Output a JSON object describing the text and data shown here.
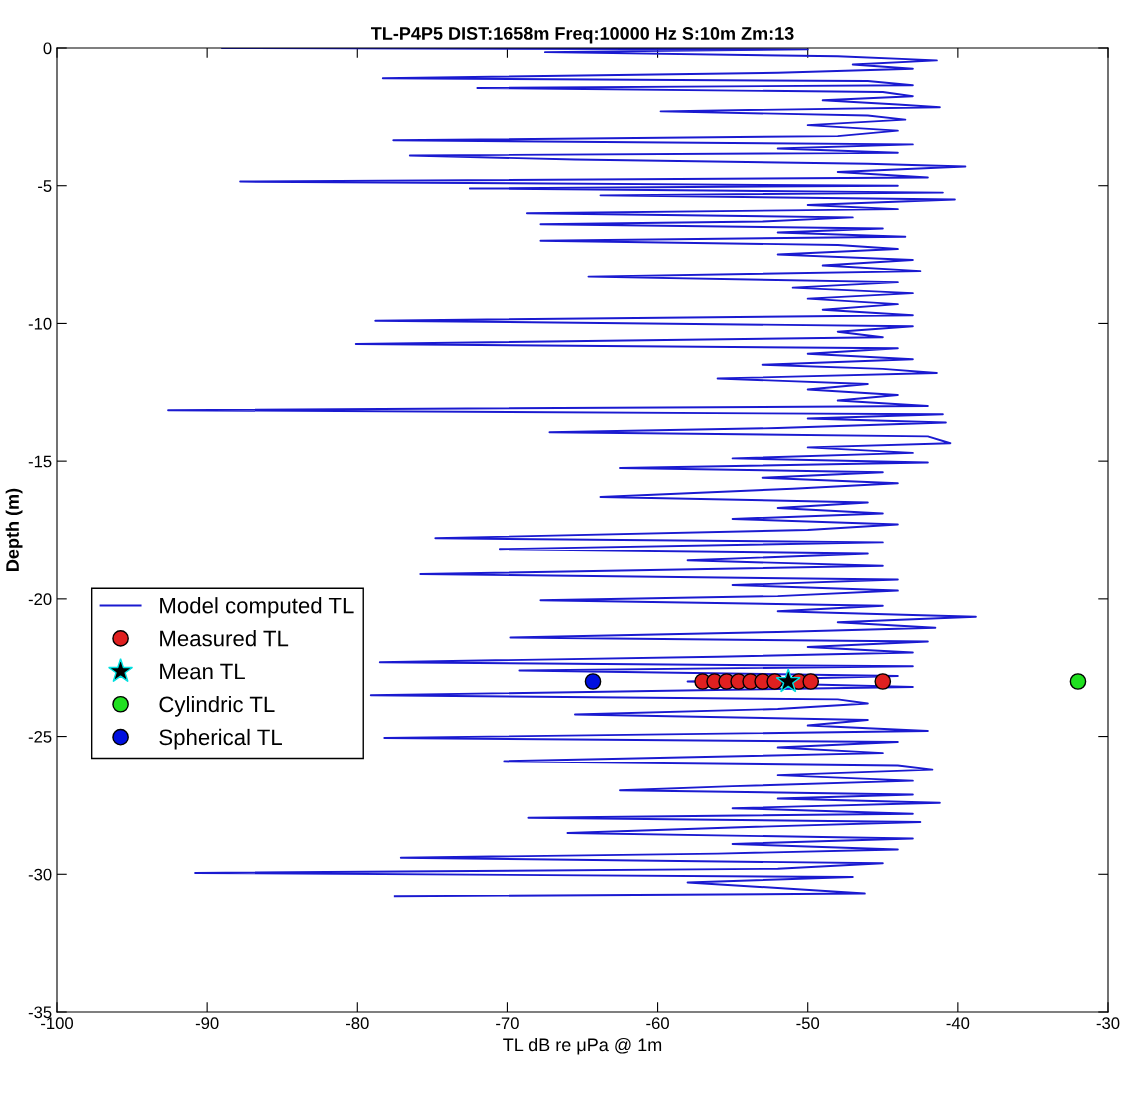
{
  "chart_data": {
    "type": "line",
    "title": "TL-P4P5 DIST:1658m Freq:10000 Hz S:10m Zm:13",
    "xlabel": "TL dB re μPa @ 1m",
    "ylabel": "Depth (m)",
    "xlim": [
      -100,
      -30
    ],
    "xticks": [
      -100,
      -90,
      -80,
      -70,
      -60,
      -50,
      -40,
      -30
    ],
    "ylim": [
      -35,
      0
    ],
    "yticks": [
      -35,
      -30,
      -25,
      -20,
      -15,
      -10,
      -5,
      0
    ],
    "grid": false,
    "legend": "left",
    "series": [
      {
        "name": "Model computed TL",
        "color": "#1a1ad0",
        "marker": "none",
        "line_style": "solid",
        "x": [
          -89,
          -50,
          -67.5,
          -48,
          -41.4,
          -47,
          -43,
          -52,
          -78.3,
          -46,
          -43,
          -72,
          -45,
          -43,
          -49,
          -44,
          -41.2,
          -59.8,
          -46,
          -43.5,
          -50,
          -44,
          -48,
          -77.6,
          -43,
          -52,
          -44,
          -76.5,
          -65.5,
          -46,
          -39.5,
          -48,
          -42,
          -87.8,
          -44,
          -72.5,
          -41,
          -63.8,
          -40.2,
          -50,
          -44,
          -68.7,
          -47,
          -53,
          -67.8,
          -45,
          -52,
          -43.5,
          -67.8,
          -48,
          -44,
          -52,
          -43,
          -49,
          -42.5,
          -64.6,
          -44,
          -51,
          -43,
          -50,
          -44,
          -49,
          -43,
          -78.8,
          -43,
          -48,
          -45,
          -80.1,
          -44,
          -50,
          -43,
          -53,
          -45,
          -41.4,
          -56,
          -46,
          -50,
          -44,
          -48,
          -42,
          -92.6,
          -41,
          -50,
          -40.8,
          -52,
          -67.2,
          -42,
          -40.5,
          -50,
          -43,
          -55,
          -42,
          -62.5,
          -45,
          -53,
          -44,
          -51,
          -63.8,
          -46,
          -52,
          -45,
          -55,
          -44,
          -50,
          -74.8,
          -45,
          -70.5,
          -46,
          -58,
          -45,
          -75.8,
          -44,
          -55,
          -44,
          -52,
          -67.8,
          -45,
          -52,
          -38.8,
          -48,
          -41.5,
          -52,
          -69.8,
          -42,
          -50,
          -43,
          -56,
          -78.5,
          -43,
          -69.2,
          -44,
          -58,
          -43,
          -79.1,
          -48,
          -46,
          -52,
          -65.5,
          -46,
          -50,
          -42,
          -78.2,
          -44,
          -52,
          -45,
          -70.2,
          -44,
          -41.7,
          -52,
          -43,
          -55,
          -62.5,
          -43,
          -52,
          -41.2,
          -55,
          -43,
          -68.6,
          -42.5,
          -55,
          -66,
          -43,
          -55,
          -44,
          -56,
          -77.1,
          -45,
          -52,
          -90.8,
          -47,
          -58,
          -52,
          -46.2,
          -77.5
        ],
        "values": [
          0,
          -0.05,
          -0.15,
          -0.3,
          -0.45,
          -0.6,
          -0.75,
          -0.9,
          -1.1,
          -1.2,
          -1.35,
          -1.45,
          -1.6,
          -1.75,
          -1.9,
          -2.05,
          -2.15,
          -2.3,
          -2.45,
          -2.6,
          -2.8,
          -3.0,
          -3.2,
          -3.35,
          -3.5,
          -3.65,
          -3.8,
          -3.9,
          -4.05,
          -4.2,
          -4.3,
          -4.5,
          -4.7,
          -4.85,
          -5.0,
          -5.1,
          -5.25,
          -5.35,
          -5.5,
          -5.7,
          -5.85,
          -6.0,
          -6.15,
          -6.3,
          -6.4,
          -6.55,
          -6.7,
          -6.85,
          -7.0,
          -7.15,
          -7.3,
          -7.5,
          -7.7,
          -7.9,
          -8.1,
          -8.3,
          -8.5,
          -8.7,
          -8.9,
          -9.1,
          -9.3,
          -9.5,
          -9.7,
          -9.9,
          -10.1,
          -10.3,
          -10.5,
          -10.75,
          -10.9,
          -11.1,
          -11.3,
          -11.5,
          -11.65,
          -11.8,
          -12.0,
          -12.2,
          -12.4,
          -12.6,
          -12.8,
          -13.0,
          -13.15,
          -13.3,
          -13.45,
          -13.6,
          -13.8,
          -13.95,
          -14.1,
          -14.35,
          -14.5,
          -14.7,
          -14.9,
          -15.05,
          -15.25,
          -15.4,
          -15.6,
          -15.8,
          -16.0,
          -16.3,
          -16.5,
          -16.7,
          -16.9,
          -17.1,
          -17.3,
          -17.5,
          -17.8,
          -17.95,
          -18.2,
          -18.35,
          -18.6,
          -18.8,
          -19.1,
          -19.3,
          -19.5,
          -19.7,
          -19.9,
          -20.05,
          -20.25,
          -20.45,
          -20.65,
          -20.85,
          -21.05,
          -21.2,
          -21.4,
          -21.55,
          -21.75,
          -21.95,
          -22.1,
          -22.3,
          -22.45,
          -22.6,
          -22.8,
          -23.0,
          -23.2,
          -23.5,
          -23.65,
          -23.8,
          -24.0,
          -24.2,
          -24.4,
          -24.6,
          -24.8,
          -25.05,
          -25.2,
          -25.4,
          -25.6,
          -25.9,
          -26.05,
          -26.2,
          -26.4,
          -26.6,
          -26.8,
          -26.95,
          -27.1,
          -27.25,
          -27.4,
          -27.6,
          -27.8,
          -27.95,
          -28.1,
          -28.3,
          -28.5,
          -28.7,
          -28.9,
          -29.1,
          -29.25,
          -29.4,
          -29.6,
          -29.8,
          -29.95,
          -30.1,
          -30.3,
          -30.5,
          -30.7,
          -30.8
        ]
      },
      {
        "name": "Measured TL",
        "type": "scatter",
        "color": "#e02020",
        "marker": "circle",
        "x": [
          -57,
          -56.2,
          -55.4,
          -54.6,
          -53.8,
          -53,
          -52.2,
          -51.4,
          -50.6,
          -49.8,
          -45
        ],
        "values": [
          -23,
          -23,
          -23,
          -23,
          -23,
          -23,
          -23,
          null,
          -23,
          -23,
          -23
        ]
      },
      {
        "name": "Mean TL",
        "type": "scatter",
        "color": "#000000",
        "marker": "star",
        "x": [
          -51.3
        ],
        "values": [
          -23
        ]
      },
      {
        "name": "Cylindric TL",
        "type": "scatter",
        "color": "#20e020",
        "marker": "circle",
        "x": [
          -32
        ],
        "values": [
          -23
        ]
      },
      {
        "name": "Spherical TL",
        "type": "scatter",
        "color": "#0010e0",
        "marker": "circle",
        "x": [
          -64.3
        ],
        "values": [
          -23
        ]
      }
    ]
  }
}
